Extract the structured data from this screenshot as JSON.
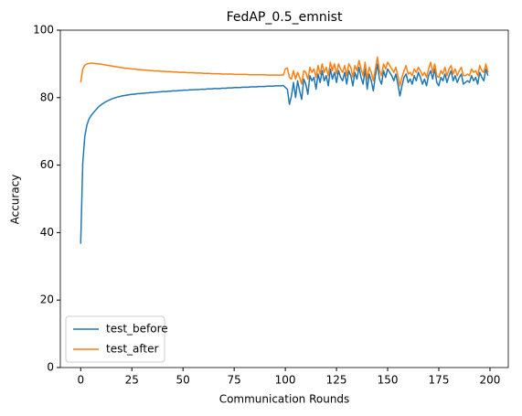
{
  "chart_data": {
    "type": "line",
    "title": "FedAP_0.5_emnist",
    "xlabel": "Communication Rounds",
    "ylabel": "Accuracy",
    "x": [
      0,
      1,
      2,
      3,
      4,
      5,
      6,
      7,
      8,
      9,
      10,
      11,
      12,
      13,
      14,
      15,
      16,
      17,
      18,
      19,
      20,
      21,
      22,
      23,
      24,
      25,
      26,
      27,
      28,
      29,
      30,
      31,
      32,
      33,
      34,
      35,
      36,
      37,
      38,
      39,
      40,
      41,
      42,
      43,
      44,
      45,
      46,
      47,
      48,
      49,
      50,
      51,
      52,
      53,
      54,
      55,
      56,
      57,
      58,
      59,
      60,
      61,
      62,
      63,
      64,
      65,
      66,
      67,
      68,
      69,
      70,
      71,
      72,
      73,
      74,
      75,
      76,
      77,
      78,
      79,
      80,
      81,
      82,
      83,
      84,
      85,
      86,
      87,
      88,
      89,
      90,
      91,
      92,
      93,
      94,
      95,
      96,
      97,
      98,
      99,
      100,
      101,
      102,
      103,
      104,
      105,
      106,
      107,
      108,
      109,
      110,
      111,
      112,
      113,
      114,
      115,
      116,
      117,
      118,
      119,
      120,
      121,
      122,
      123,
      124,
      125,
      126,
      127,
      128,
      129,
      130,
      131,
      132,
      133,
      134,
      135,
      136,
      137,
      138,
      139,
      140,
      141,
      142,
      143,
      144,
      145,
      146,
      147,
      148,
      149,
      150,
      151,
      152,
      153,
      154,
      155,
      156,
      157,
      158,
      159,
      160,
      161,
      162,
      163,
      164,
      165,
      166,
      167,
      168,
      169,
      170,
      171,
      172,
      173,
      174,
      175,
      176,
      177,
      178,
      179,
      180,
      181,
      182,
      183,
      184,
      185,
      186,
      187,
      188,
      189,
      190,
      191,
      192,
      193,
      194,
      195,
      196,
      197,
      198,
      199
    ],
    "series": [
      {
        "name": "test_before",
        "color": "#1f77b4",
        "values": [
          36.7,
          60.5,
          68.5,
          71.8,
          73.6,
          74.6,
          75.4,
          76.1,
          76.8,
          77.4,
          77.9,
          78.3,
          78.7,
          79.0,
          79.3,
          79.6,
          79.8,
          80.0,
          80.2,
          80.3,
          80.5,
          80.6,
          80.7,
          80.8,
          80.9,
          81.0,
          81.0,
          81.1,
          81.2,
          81.2,
          81.3,
          81.3,
          81.4,
          81.4,
          81.5,
          81.5,
          81.6,
          81.6,
          81.7,
          81.7,
          81.8,
          81.8,
          81.8,
          81.9,
          81.9,
          82.0,
          82.0,
          82.0,
          82.1,
          82.1,
          82.2,
          82.2,
          82.2,
          82.3,
          82.3,
          82.3,
          82.4,
          82.4,
          82.4,
          82.5,
          82.5,
          82.5,
          82.6,
          82.6,
          82.6,
          82.7,
          82.7,
          82.7,
          82.7,
          82.8,
          82.8,
          82.8,
          82.9,
          82.9,
          82.9,
          83.0,
          83.0,
          83.0,
          83.0,
          83.1,
          83.1,
          83.1,
          83.1,
          83.2,
          83.2,
          83.2,
          83.2,
          83.3,
          83.3,
          83.3,
          83.3,
          83.4,
          83.4,
          83.4,
          83.4,
          83.5,
          83.5,
          83.5,
          83.5,
          83.6,
          83.0,
          82.5,
          78.0,
          80.5,
          84.5,
          80.0,
          85.0,
          82.0,
          79.5,
          85.5,
          84.0,
          81.0,
          86.5,
          85.0,
          86.0,
          82.5,
          87.0,
          84.5,
          88.0,
          85.0,
          86.5,
          83.5,
          88.5,
          85.5,
          87.5,
          84.5,
          88.0,
          86.0,
          85.0,
          87.5,
          84.0,
          88.0,
          86.5,
          83.5,
          87.5,
          85.5,
          89.0,
          86.0,
          84.0,
          88.5,
          82.5,
          87.0,
          85.0,
          82.0,
          86.5,
          90.0,
          85.5,
          84.0,
          88.0,
          86.0,
          88.5,
          87.5,
          86.5,
          85.0,
          87.0,
          84.0,
          80.5,
          83.5,
          86.0,
          87.0,
          84.5,
          85.5,
          84.0,
          86.5,
          85.0,
          87.5,
          86.0,
          84.0,
          85.5,
          83.5,
          86.5,
          88.0,
          85.5,
          88.5,
          84.5,
          83.5,
          86.0,
          85.0,
          87.0,
          84.5,
          86.5,
          88.0,
          85.0,
          86.5,
          84.5,
          86.0,
          87.0,
          84.0,
          84.5,
          85.0,
          84.5,
          86.5,
          85.0,
          86.0,
          84.0,
          87.5,
          86.0,
          85.0,
          88.5,
          86.5
        ]
      },
      {
        "name": "test_after",
        "color": "#ff7f0e",
        "values": [
          84.5,
          88.5,
          89.6,
          90.0,
          90.1,
          90.2,
          90.2,
          90.1,
          90.0,
          90.0,
          89.9,
          89.8,
          89.7,
          89.6,
          89.5,
          89.4,
          89.3,
          89.2,
          89.1,
          89.0,
          88.9,
          88.8,
          88.7,
          88.7,
          88.6,
          88.5,
          88.5,
          88.4,
          88.3,
          88.3,
          88.2,
          88.2,
          88.1,
          88.1,
          88.0,
          88.0,
          87.9,
          87.9,
          87.9,
          87.8,
          87.8,
          87.8,
          87.7,
          87.7,
          87.7,
          87.6,
          87.6,
          87.6,
          87.5,
          87.5,
          87.5,
          87.5,
          87.4,
          87.4,
          87.4,
          87.4,
          87.3,
          87.3,
          87.3,
          87.3,
          87.2,
          87.2,
          87.2,
          87.2,
          87.1,
          87.1,
          87.1,
          87.1,
          87.1,
          87.0,
          87.0,
          87.0,
          87.0,
          87.0,
          87.0,
          86.9,
          86.9,
          86.9,
          86.9,
          86.9,
          86.9,
          86.9,
          86.8,
          86.8,
          86.8,
          86.8,
          86.8,
          86.8,
          86.8,
          86.8,
          86.8,
          86.7,
          86.7,
          86.7,
          86.7,
          86.7,
          86.7,
          86.7,
          86.7,
          86.7,
          88.5,
          88.8,
          86.0,
          85.5,
          88.0,
          85.5,
          87.5,
          86.0,
          84.0,
          88.0,
          87.5,
          85.5,
          89.0,
          87.5,
          88.5,
          86.0,
          89.5,
          87.0,
          90.0,
          87.5,
          89.0,
          86.5,
          90.5,
          88.0,
          90.0,
          87.0,
          90.0,
          88.5,
          87.5,
          89.5,
          86.5,
          90.0,
          89.0,
          86.0,
          89.5,
          88.0,
          91.0,
          88.5,
          86.5,
          90.5,
          85.5,
          89.0,
          87.5,
          85.0,
          88.5,
          92.0,
          88.0,
          86.5,
          90.0,
          88.5,
          90.5,
          89.5,
          88.5,
          87.5,
          89.0,
          86.5,
          83.5,
          86.0,
          88.0,
          89.5,
          87.0,
          87.5,
          86.5,
          88.5,
          87.5,
          89.0,
          88.0,
          86.5,
          87.5,
          86.0,
          88.5,
          90.5,
          87.5,
          90.0,
          86.5,
          86.0,
          88.0,
          87.0,
          89.0,
          86.5,
          88.5,
          89.5,
          87.0,
          88.5,
          86.5,
          88.0,
          89.0,
          86.5,
          86.5,
          87.0,
          86.5,
          88.5,
          87.5,
          88.0,
          86.5,
          89.5,
          88.0,
          87.5,
          90.0,
          87.5
        ]
      }
    ],
    "xlim": [
      -9.95,
      208.95
    ],
    "ylim": [
      0,
      100
    ],
    "xticks": [
      0,
      25,
      50,
      75,
      100,
      125,
      150,
      175,
      200
    ],
    "yticks": [
      0,
      20,
      40,
      60,
      80,
      100
    ],
    "legend": "lower left"
  }
}
